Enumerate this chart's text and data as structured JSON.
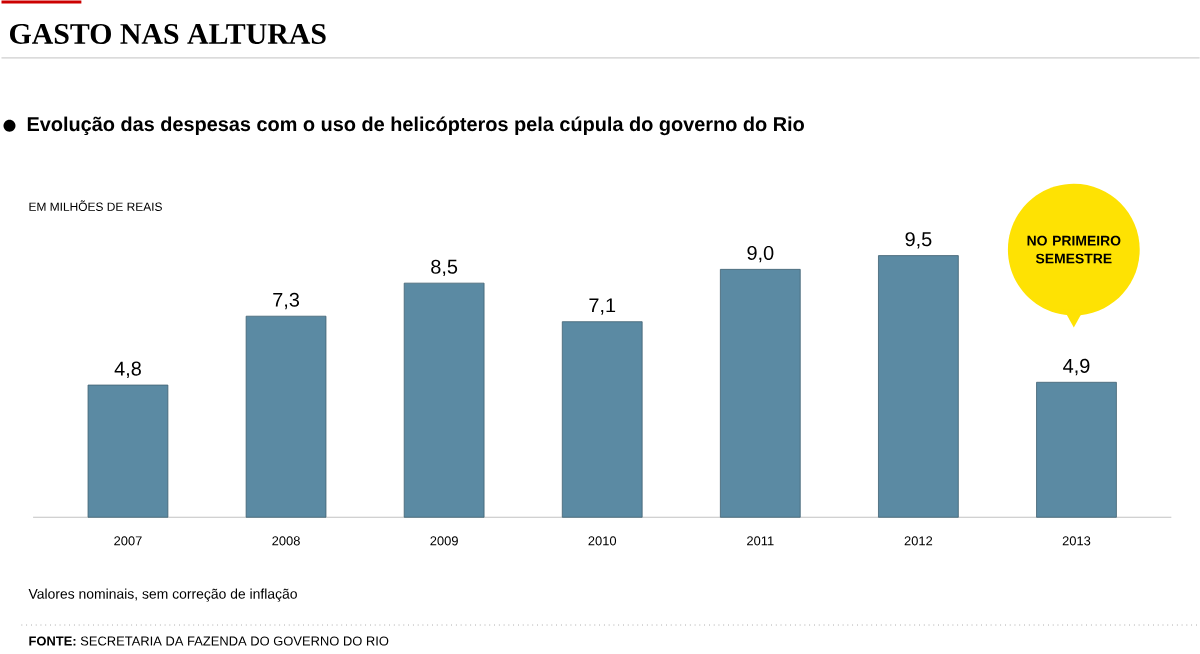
{
  "chart_data": {
    "type": "bar",
    "title": "GASTO NAS ALTURAS",
    "subtitle": "Evolução das despesas com o uso de helicópteros pela cúpula do governo do Rio",
    "categories": [
      "2007",
      "2008",
      "2009",
      "2010",
      "2011",
      "2012",
      "2013"
    ],
    "values": [
      4.8,
      7.3,
      8.5,
      7.1,
      9.0,
      9.5,
      4.9
    ],
    "value_labels": [
      "4,8",
      "7,3",
      "8,5",
      "7,1",
      "9,0",
      "9,5",
      "4,9"
    ],
    "color": "#5b8aa3",
    "annotations": [
      "EM MILHÕES DE REAIS",
      "NO PRIMEIRO SEMESTRE",
      "Valores nominais, sem correção de inflação",
      "**FONTE:** SECRETARIA DA FAZENDA DO GOVERNO DO RIO"
    ]
  }
}
